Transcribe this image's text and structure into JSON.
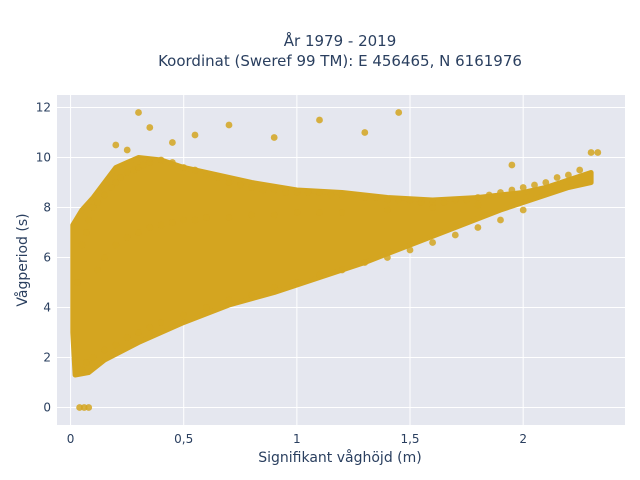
{
  "chart_data": {
    "type": "scatter",
    "title_lines": [
      "År 1979 - 2019",
      "Koordinat (Sweref 99 TM): E 456465, N 6161976"
    ],
    "xlabel": "Signifikant våghöjd (m)",
    "ylabel": "Vågperiod (s)",
    "xlim": [
      -0.06,
      2.45
    ],
    "ylim": [
      -0.7,
      12.5
    ],
    "x_ticks": [
      0,
      0.5,
      1,
      1.5,
      2
    ],
    "x_tick_labels": [
      "0",
      "0,5",
      "1",
      "1,5",
      "2"
    ],
    "y_ticks": [
      0,
      2,
      4,
      6,
      8,
      10,
      12
    ],
    "y_tick_labels": [
      "0",
      "2",
      "4",
      "6",
      "8",
      "10",
      "12"
    ],
    "grid": true,
    "marker_color": "#d4a520",
    "plot_bgcolor": "#e5e7ef",
    "x": [
      0.02,
      0.03,
      0.05,
      0.07,
      0.08,
      0.1,
      0.12,
      0.15,
      0.18,
      0.2,
      0.22,
      0.25,
      0.28,
      0.3,
      0.32,
      0.35,
      0.4,
      0.45,
      0.5,
      0.55,
      0.6,
      0.65,
      0.7,
      0.75,
      0.8,
      0.85,
      0.9,
      0.95,
      1.0,
      1.05,
      1.1,
      1.15,
      1.2,
      1.25,
      1.3,
      1.35,
      1.4,
      1.45,
      1.5,
      1.55,
      1.6,
      1.65,
      1.7,
      1.75,
      1.8,
      1.85,
      1.9,
      1.95,
      2.0,
      2.05,
      2.1,
      2.15,
      2.2,
      2.25,
      2.3,
      0.04,
      0.06,
      0.08,
      0.05,
      0.07,
      0.1,
      0.15,
      0.2,
      0.25,
      0.3,
      0.35,
      0.4,
      0.5,
      0.6,
      0.7,
      0.8,
      0.9,
      1.0,
      1.1,
      1.2,
      1.3,
      1.4,
      1.5,
      1.6,
      1.7,
      1.8,
      1.9,
      2.0,
      0.12,
      0.15,
      0.2,
      0.25,
      0.3,
      0.35,
      0.4,
      0.45,
      0.5,
      0.55,
      0.6,
      0.7,
      0.8,
      0.9,
      1.0,
      1.1,
      1.2,
      1.4,
      1.6,
      1.8,
      0.2,
      0.3,
      0.35,
      0.55,
      0.9,
      1.45,
      1.95,
      2.33,
      0.25,
      0.45,
      0.7,
      1.1,
      1.3
    ],
    "y": [
      2.5,
      5.0,
      6.5,
      7.0,
      7.5,
      8.0,
      8.2,
      8.5,
      8.8,
      9.0,
      9.2,
      9.4,
      9.5,
      9.6,
      9.7,
      9.8,
      9.9,
      9.8,
      9.6,
      9.5,
      9.3,
      9.2,
      9.0,
      8.9,
      8.8,
      8.7,
      8.7,
      8.6,
      8.6,
      8.6,
      8.6,
      8.5,
      8.5,
      8.5,
      8.4,
      8.4,
      8.3,
      8.3,
      8.3,
      8.2,
      8.2,
      8.2,
      8.3,
      8.3,
      8.4,
      8.5,
      8.6,
      8.7,
      8.8,
      8.9,
      9.0,
      9.2,
      9.3,
      9.5,
      10.2,
      0.0,
      0.0,
      0.0,
      1.5,
      1.8,
      2.0,
      2.3,
      2.5,
      2.8,
      3.0,
      3.2,
      3.4,
      3.7,
      4.0,
      4.3,
      4.5,
      4.8,
      5.0,
      5.3,
      5.5,
      5.8,
      6.0,
      6.3,
      6.6,
      6.9,
      7.2,
      7.5,
      7.9,
      5.5,
      6.0,
      6.5,
      6.8,
      7.0,
      7.2,
      7.3,
      7.4,
      7.5,
      7.5,
      7.6,
      7.6,
      7.7,
      7.7,
      7.8,
      7.8,
      7.8,
      7.9,
      8.0,
      8.1,
      10.5,
      11.8,
      11.2,
      10.9,
      10.8,
      11.8,
      9.7,
      10.2,
      10.3,
      10.6,
      11.3,
      11.5,
      11.0
    ]
  }
}
